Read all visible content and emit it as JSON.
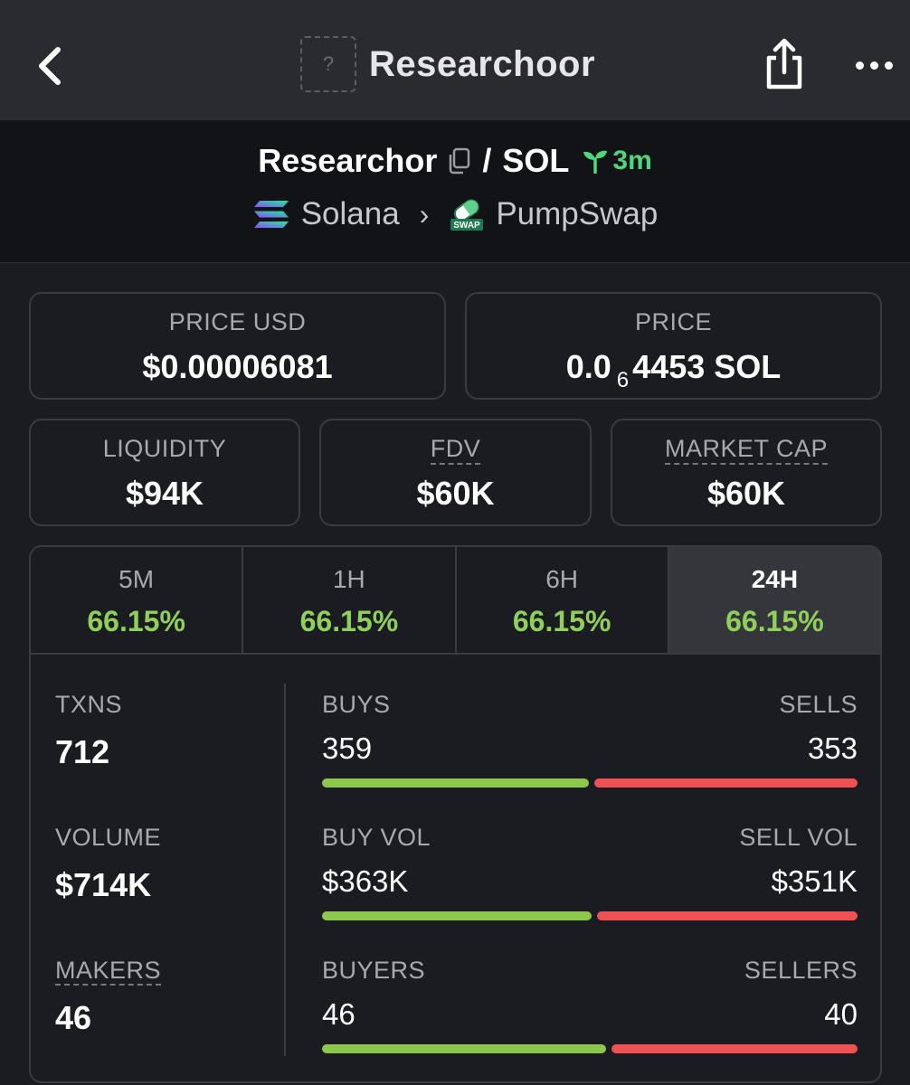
{
  "nav": {
    "title": "Researchoor",
    "placeholder_glyph": "?",
    "back_icon": "chevron-left-icon",
    "share_icon": "share-icon",
    "more_icon": "more-horizontal-icon"
  },
  "pair": {
    "base": "Researchor",
    "separator": "/",
    "quote": "SOL",
    "age": "3m",
    "chain": "Solana",
    "dex": "PumpSwap",
    "chevron": "›",
    "dex_badge_text": "SWAP"
  },
  "price": {
    "usd_label": "PRICE USD",
    "usd_value": "$0.00006081",
    "native_label": "PRICE",
    "native_prefix": "0.0",
    "native_zeros": "6",
    "native_suffix": "4453 SOL"
  },
  "metrics": {
    "liquidity_label": "LIQUIDITY",
    "liquidity_value": "$94K",
    "fdv_label": "FDV",
    "fdv_value": "$60K",
    "mcap_label": "MARKET CAP",
    "mcap_value": "$60K"
  },
  "timeframes": [
    {
      "label": "5M",
      "change": "66.15%"
    },
    {
      "label": "1H",
      "change": "66.15%"
    },
    {
      "label": "6H",
      "change": "66.15%"
    },
    {
      "label": "24H",
      "change": "66.15%"
    }
  ],
  "active_timeframe": "24H",
  "stats": {
    "txns_label": "TXNS",
    "txns_value": "712",
    "volume_label": "VOLUME",
    "volume_value": "$714K",
    "makers_label": "MAKERS",
    "makers_value": "46",
    "buys_label": "BUYS",
    "buys_value": "359",
    "sells_label": "SELLS",
    "sells_value": "353",
    "buys_fraction": 0.504,
    "buy_vol_label": "BUY VOL",
    "buy_vol_value": "$363K",
    "sell_vol_label": "SELL VOL",
    "sell_vol_value": "$351K",
    "buy_vol_fraction": 0.508,
    "buyers_label": "BUYERS",
    "buyers_value": "46",
    "sellers_label": "SELLERS",
    "sellers_value": "40",
    "buyers_fraction": 0.535
  },
  "colors": {
    "positive": "#8fd05a",
    "buy_bar": "#8cc84b",
    "sell_bar": "#f05152",
    "age_green": "#4fd67c"
  }
}
